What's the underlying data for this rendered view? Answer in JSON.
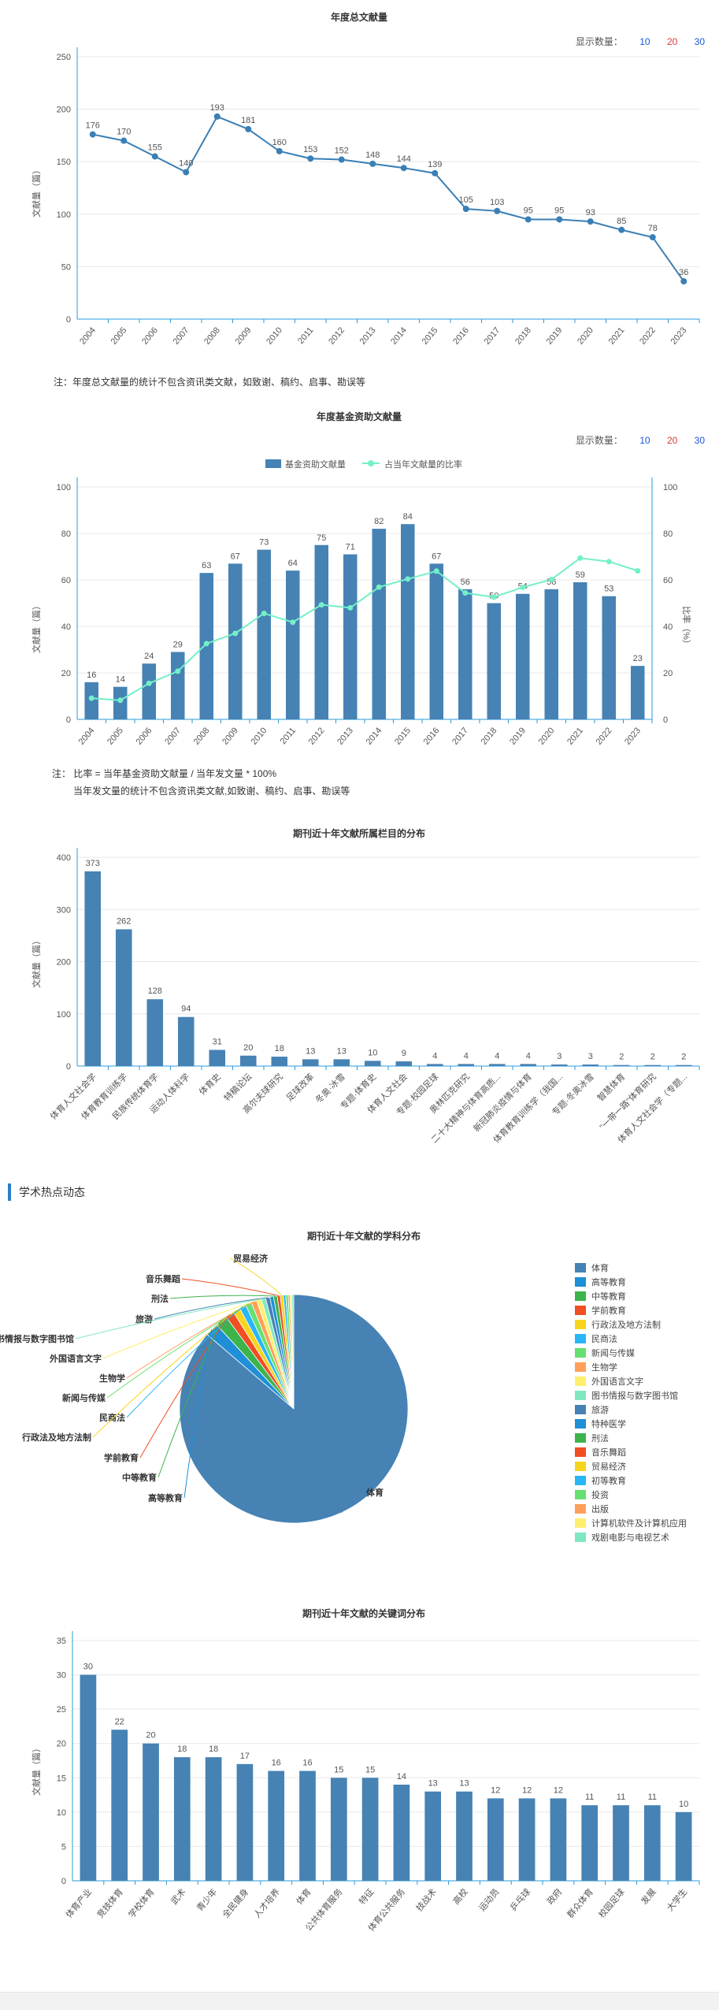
{
  "display_count_label": "显示数量：",
  "display_count_options": [
    {
      "label": "10",
      "color": "#1a56d8"
    },
    {
      "label": "20",
      "color": "#d83a3a"
    },
    {
      "label": "30",
      "color": "#1a56d8"
    }
  ],
  "section_hot": {
    "label": "学术热点动态"
  },
  "notes": {
    "annual": "注：年度总文献量的统计不包含资讯类文献，如致谢、稿约、启事、勘误等",
    "fund_line1": "注：  比率 = 当年基金资助文献量 / 当年发文量 * 100%",
    "fund_line2": "当年发文量的统计不包含资讯类文献,如致谢、稿约、启事、勘误等"
  },
  "colors": {
    "bar": "#4682b4",
    "line": "#3a7fb5",
    "ratio": "#74f0c8",
    "axis": "#2a9bd8"
  },
  "chart_data": [
    {
      "id": "annual",
      "type": "line",
      "title": "年度总文献量",
      "ylabel": "文献量（篇）",
      "ylim": [
        0,
        250
      ],
      "yticks": [
        0,
        50,
        100,
        150,
        200,
        250
      ],
      "x": [
        "2004",
        "2005",
        "2006",
        "2007",
        "2008",
        "2009",
        "2010",
        "2011",
        "2012",
        "2013",
        "2014",
        "2015",
        "2016",
        "2017",
        "2018",
        "2019",
        "2020",
        "2021",
        "2022",
        "2023"
      ],
      "values": [
        176,
        170,
        155,
        140,
        193,
        181,
        160,
        153,
        152,
        148,
        144,
        139,
        105,
        103,
        95,
        95,
        93,
        85,
        78,
        36
      ]
    },
    {
      "id": "fund",
      "type": "bar",
      "title": "年度基金资助文献量",
      "ylabel": "文献量（篇）",
      "y2label": "比率（%）",
      "ylim": [
        0,
        100
      ],
      "y2lim": [
        0,
        100
      ],
      "yticks": [
        0,
        20,
        40,
        60,
        80,
        100
      ],
      "legend": [
        "基金资助文献量",
        "占当年文献量的比率"
      ],
      "legend_position": "top-center",
      "x": [
        "2004",
        "2005",
        "2006",
        "2007",
        "2008",
        "2009",
        "2010",
        "2011",
        "2012",
        "2013",
        "2014",
        "2015",
        "2016",
        "2017",
        "2018",
        "2019",
        "2020",
        "2021",
        "2022",
        "2023"
      ],
      "series": [
        {
          "name": "基金资助文献量",
          "values": [
            16,
            14,
            24,
            29,
            63,
            67,
            73,
            64,
            75,
            71,
            82,
            84,
            67,
            56,
            50,
            54,
            56,
            59,
            53,
            23
          ]
        },
        {
          "name": "占当年文献量的比率",
          "values": [
            9.1,
            8.2,
            15.5,
            20.7,
            32.6,
            37.0,
            45.6,
            41.8,
            49.3,
            48.0,
            56.9,
            60.4,
            63.8,
            54.4,
            52.6,
            56.8,
            60.2,
            69.4,
            67.9,
            63.9
          ]
        }
      ]
    },
    {
      "id": "columns",
      "type": "bar",
      "title": "期刊近十年文献所属栏目的分布",
      "ylabel": "文献量（篇）",
      "ylim": [
        0,
        400
      ],
      "yticks": [
        0,
        100,
        200,
        300,
        400
      ],
      "categories": [
        "体育人文社会学",
        "体育教育训练学",
        "民族传统体育学",
        "运动人体科学",
        "体育史",
        "特稿论坛",
        "高尔夫球研究",
        "足球改革",
        "冬奥·冰雪",
        "专题·体育史",
        "体育人文社会",
        "专题·校园足球",
        "奥林匹克研究",
        "二十大精神与体育高质...",
        "新冠肺炎疫情与体育",
        "体育教育训练学（我国...",
        "专题·冬奥冰雪",
        "智慧体育",
        "\"一带一路\"体育研究",
        "体育人文社会学（专题..."
      ],
      "values": [
        373,
        262,
        128,
        94,
        31,
        20,
        18,
        13,
        13,
        10,
        9,
        4,
        4,
        4,
        4,
        3,
        3,
        2,
        2,
        2
      ]
    },
    {
      "id": "subjects",
      "type": "pie",
      "title": "期刊近十年文献的学科分布",
      "legend_position": "right",
      "slices": [
        {
          "label": "体育",
          "value": 1000,
          "color": "#4682b4"
        },
        {
          "label": "高等教育",
          "value": 22,
          "color": "#1f8fd6"
        },
        {
          "label": "中等教育",
          "value": 20,
          "color": "#3cb44b"
        },
        {
          "label": "学前教育",
          "value": 14,
          "color": "#f04e23"
        },
        {
          "label": "行政法及地方法制",
          "value": 12,
          "color": "#f7d51d"
        },
        {
          "label": "民商法",
          "value": 11,
          "color": "#29b6f6"
        },
        {
          "label": "新闻与传媒",
          "value": 10,
          "color": "#66e070"
        },
        {
          "label": "生物学",
          "value": 9,
          "color": "#ff9f5a"
        },
        {
          "label": "外国语言文字",
          "value": 8,
          "color": "#ffef6e"
        },
        {
          "label": "图书情报与数字图书馆",
          "value": 7,
          "color": "#7fe8c0"
        },
        {
          "label": "旅游",
          "value": 7,
          "color": "#4682b4"
        },
        {
          "label": "特种医学",
          "value": 6,
          "color": "#1f8fd6"
        },
        {
          "label": "刑法",
          "value": 6,
          "color": "#3cb44b"
        },
        {
          "label": "音乐舞蹈",
          "value": 5,
          "color": "#f04e23"
        },
        {
          "label": "贸易经济",
          "value": 5,
          "color": "#f7d51d"
        },
        {
          "label": "初等教育",
          "value": 4,
          "color": "#29b6f6"
        },
        {
          "label": "投资",
          "value": 4,
          "color": "#66e070"
        },
        {
          "label": "出版",
          "value": 3,
          "color": "#ff9f5a"
        },
        {
          "label": "计算机软件及计算机应用",
          "value": 3,
          "color": "#ffef6e"
        },
        {
          "label": "戏剧电影与电视艺术",
          "value": 3,
          "color": "#7fe8c0"
        }
      ],
      "outer_labels": [
        "贸易经济",
        "音乐舞蹈",
        "刑法",
        "旅游",
        "图书情报与数字图书馆",
        "外国语言文字",
        "生物学",
        "新闻与传媒",
        "民商法",
        "行政法及地方法制",
        "学前教育",
        "中等教育",
        "高等教育",
        "体育"
      ]
    },
    {
      "id": "keywords",
      "type": "bar",
      "title": "期刊近十年文献的关键词分布",
      "ylabel": "文献量（篇）",
      "ylim": [
        0,
        35
      ],
      "yticks": [
        0,
        5,
        10,
        15,
        20,
        25,
        30,
        35
      ],
      "categories": [
        "体育产业",
        "竞技体育",
        "学校体育",
        "武术",
        "青少年",
        "全民健身",
        "人才培养",
        "体育",
        "公共体育服务",
        "特征",
        "体育公共服务",
        "技战术",
        "高校",
        "运动员",
        "乒乓球",
        "政府",
        "群众体育",
        "校园足球",
        "发展",
        "大学生"
      ],
      "values": [
        30,
        22,
        20,
        18,
        18,
        17,
        16,
        16,
        15,
        15,
        14,
        13,
        13,
        12,
        12,
        12,
        11,
        11,
        11,
        10
      ]
    }
  ]
}
